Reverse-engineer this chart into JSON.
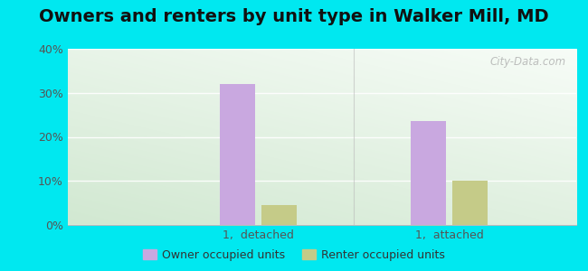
{
  "title": "Owners and renters by unit type in Walker Mill, MD",
  "categories": [
    "1,  detached",
    "1,  attached"
  ],
  "owner_values": [
    32,
    23.5
  ],
  "renter_values": [
    4.5,
    10
  ],
  "owner_color": "#c9a8e0",
  "renter_color": "#c5cb88",
  "ylim": [
    0,
    40
  ],
  "yticks": [
    0,
    10,
    20,
    30,
    40
  ],
  "ytick_labels": [
    "0%",
    "10%",
    "20%",
    "30%",
    "40%"
  ],
  "outer_background": "#00e8f0",
  "title_fontsize": 14,
  "legend_labels": [
    "Owner occupied units",
    "Renter occupied units"
  ],
  "watermark": "City-Data.com",
  "bar_width": 0.28
}
